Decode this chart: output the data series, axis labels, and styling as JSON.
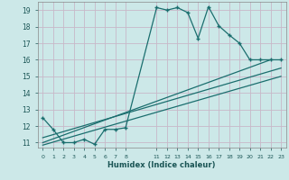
{
  "xlabel": "Humidex (Indice chaleur)",
  "bg_color": "#cce8e8",
  "grid_color": "#b8d4d4",
  "line_color": "#1a6e6e",
  "xlim": [
    -0.5,
    23.5
  ],
  "ylim": [
    10.7,
    19.5
  ],
  "xticks": [
    0,
    1,
    2,
    3,
    4,
    5,
    6,
    7,
    8,
    11,
    12,
    13,
    14,
    15,
    16,
    17,
    18,
    19,
    20,
    21,
    22,
    23
  ],
  "yticks": [
    11,
    12,
    13,
    14,
    15,
    16,
    17,
    18,
    19
  ],
  "series1_x": [
    0,
    1,
    2,
    3,
    4,
    5,
    6,
    7,
    8,
    11,
    12,
    13,
    14,
    15,
    16,
    17,
    18,
    19,
    20,
    21,
    22,
    23
  ],
  "series1_y": [
    12.5,
    11.8,
    11.0,
    11.0,
    11.2,
    10.9,
    11.8,
    11.8,
    11.9,
    19.15,
    19.0,
    19.15,
    18.85,
    17.3,
    19.2,
    18.05,
    17.5,
    17.0,
    16.0,
    16.0,
    16.0,
    16.0
  ],
  "series2_x": [
    0,
    22
  ],
  "series2_y": [
    11.0,
    16.0
  ],
  "series3_x": [
    0,
    23
  ],
  "series3_y": [
    11.3,
    15.5
  ],
  "series4_x": [
    0,
    23
  ],
  "series4_y": [
    10.85,
    15.0
  ]
}
